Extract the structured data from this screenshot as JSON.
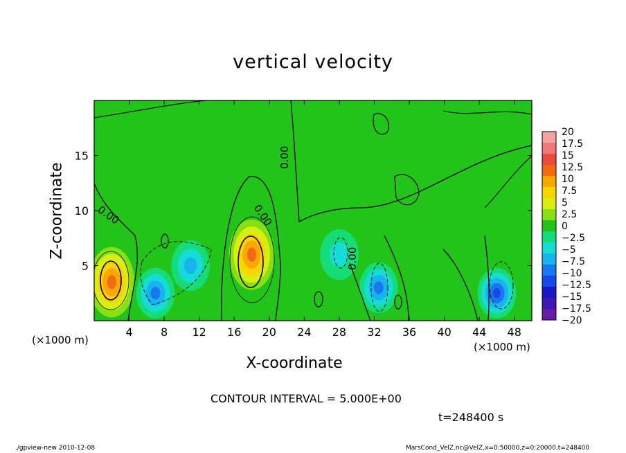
{
  "chart_data": {
    "type": "heatmap",
    "title": "vertical velocity",
    "xlabel": "X-coordinate",
    "ylabel": "Z-coordinate",
    "x_unit_label": "(×1000 m)",
    "x_ticks": [
      "4",
      "8",
      "12",
      "16",
      "20",
      "24",
      "28",
      "32",
      "36",
      "40",
      "44",
      "48"
    ],
    "y_ticks": [
      "5",
      "10",
      "15"
    ],
    "xlim": [
      0,
      50
    ],
    "ylim": [
      0,
      20
    ],
    "colorbar": {
      "levels": [
        "20",
        "17.5",
        "15",
        "12.5",
        "10",
        "7.5",
        "5",
        "2.5",
        "0",
        "−2.5",
        "−5",
        "−7.5",
        "−10",
        "−12.5",
        "−15",
        "−17.5",
        "−20"
      ],
      "colors": [
        "#f4a2a2",
        "#f07a7a",
        "#ec4a3a",
        "#f26a14",
        "#f8a800",
        "#f8d400",
        "#d8ee10",
        "#86e014",
        "#22c41a",
        "#16dc78",
        "#16dcd6",
        "#18b4ee",
        "#1878ee",
        "#1848e6",
        "#1818c8",
        "#3c18b4",
        "#6a1aa8"
      ]
    },
    "contour_label": "0.00",
    "features": [
      {
        "type": "updraft",
        "x": 2,
        "z": 3.5,
        "peak": 12.5
      },
      {
        "type": "updraft",
        "x": 18,
        "z": 6,
        "peak": 12.5
      },
      {
        "type": "downdraft",
        "x": 7,
        "z": 2.5,
        "peak": -10
      },
      {
        "type": "downdraft",
        "x": 11,
        "z": 5,
        "peak": -7.5
      },
      {
        "type": "downdraft",
        "x": 28,
        "z": 6,
        "peak": -5
      },
      {
        "type": "downdraft",
        "x": 32.5,
        "z": 3,
        "peak": -10
      },
      {
        "type": "downdraft",
        "x": 46,
        "z": 2.5,
        "peak": -12.5
      }
    ]
  },
  "text": {
    "contour_interval": "CONTOUR INTERVAL = 5.000E+00",
    "time": "t=248400 s",
    "footer_left": "./gpview-new   2010-12-08",
    "footer_right": "MarsCond_VelZ.nc@VelZ,x=0:50000,z=0:20000,t=248400"
  }
}
